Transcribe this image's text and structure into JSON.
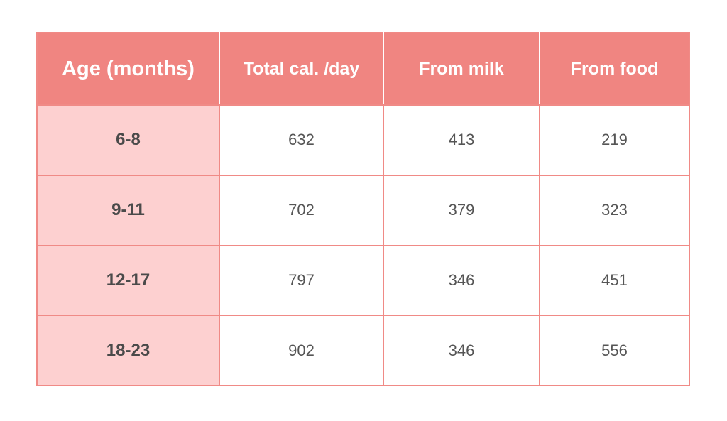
{
  "table": {
    "headers": [
      "Age (months)",
      "Total cal. /day",
      "From milk",
      "From food"
    ],
    "rows": [
      [
        "6-8",
        "632",
        "413",
        "219"
      ],
      [
        "9-11",
        "702",
        "379",
        "323"
      ],
      [
        "12-17",
        "797",
        "346",
        "451"
      ],
      [
        "18-23",
        "902",
        "346",
        "556"
      ]
    ]
  },
  "colors": {
    "header_bg": "#f08581",
    "header_text": "#ffffff",
    "age_column_bg": "#fdd0d0",
    "border": "#f08a86",
    "cell_text": "#555555"
  }
}
